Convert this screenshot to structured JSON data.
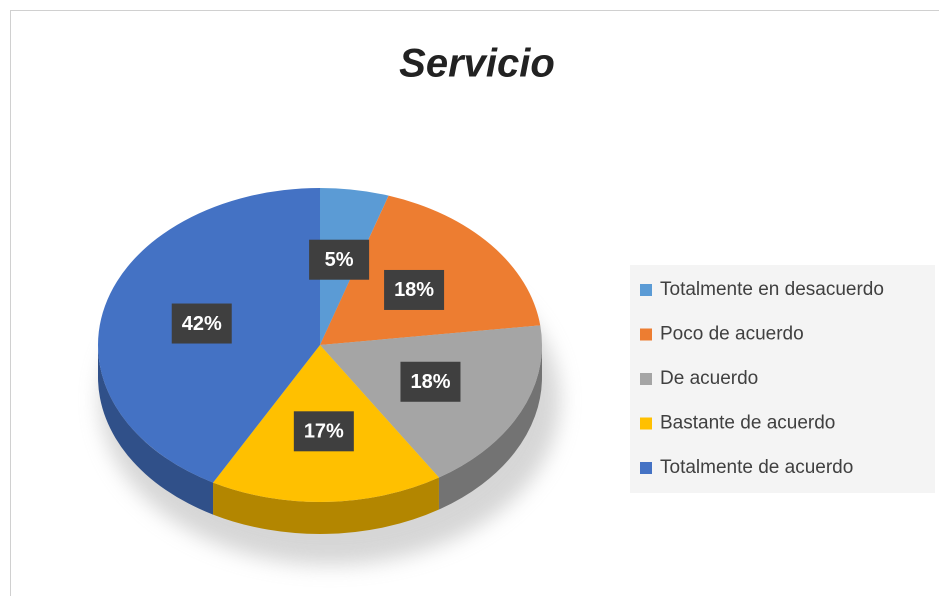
{
  "chart_data": {
    "type": "pie",
    "title": "Servicio",
    "categories": [
      "Totalmente en desacuerdo",
      "Poco de acuerdo",
      "De acuerdo",
      "Bastante de acuerdo",
      "Totalmente de acuerdo"
    ],
    "values": [
      5,
      18,
      18,
      17,
      42
    ],
    "value_labels": [
      "5%",
      "18%",
      "18%",
      "17%",
      "42%"
    ],
    "colors": [
      "#5b9bd5",
      "#ed7d31",
      "#a5a5a5",
      "#ffc000",
      "#4472c4"
    ],
    "legend": "right"
  }
}
